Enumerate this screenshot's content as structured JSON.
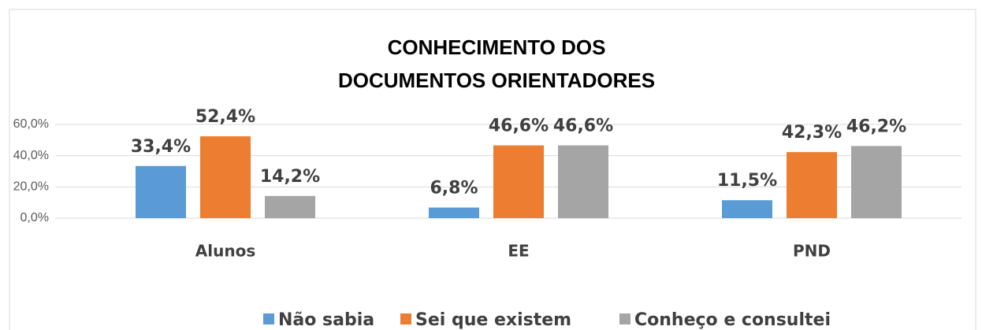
{
  "chart_data": {
    "type": "bar",
    "title": [
      "CONHECIMENTO DOS",
      "DOCUMENTOS ORIENTADORES"
    ],
    "categories": [
      "Alunos",
      "EE",
      "PND"
    ],
    "series": [
      {
        "name": "Não sabia",
        "color": "#5b9bd5",
        "values": [
          33.4,
          6.8,
          11.5
        ],
        "value_labels": [
          "33,4%",
          "6,8%",
          "11,5%"
        ]
      },
      {
        "name": "Sei que existem",
        "color": "#ed7d31",
        "values": [
          52.4,
          46.6,
          42.3
        ],
        "value_labels": [
          "52,4%",
          "46,6%",
          "42,3%"
        ]
      },
      {
        "name": "Conheço e consultei",
        "color": "#a5a5a5",
        "values": [
          14.2,
          46.6,
          46.2
        ],
        "value_labels": [
          "14,2%",
          "46,6%",
          "46,2%"
        ]
      }
    ],
    "ylim": [
      0,
      60
    ],
    "yticks": [
      {
        "value": 0,
        "label": "0,0%"
      },
      {
        "value": 20,
        "label": "20,0%"
      },
      {
        "value": 40,
        "label": "40,0%"
      },
      {
        "value": 60,
        "label": "60,0%"
      }
    ],
    "grid": true,
    "legend": "bottom"
  }
}
